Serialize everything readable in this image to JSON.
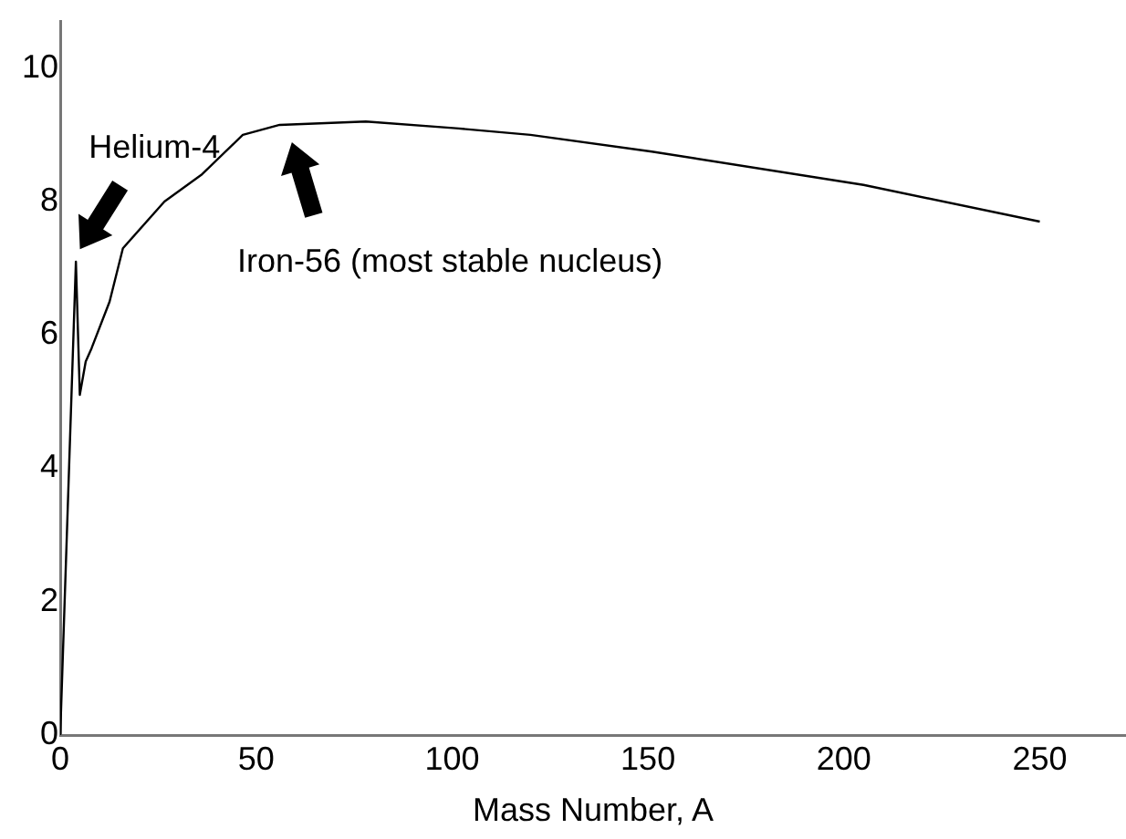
{
  "chart_data": {
    "type": "line",
    "xlabel": "Mass Number, A",
    "x": [
      0,
      4,
      5,
      6.5,
      8,
      12.6,
      16,
      26.6,
      36,
      46.6,
      56,
      78,
      101,
      120,
      151,
      205,
      250
    ],
    "values": [
      0,
      7.1,
      5.1,
      5.6,
      5.8,
      6.5,
      7.3,
      8.0,
      8.4,
      9.0,
      9.15,
      9.2,
      9.1,
      9.0,
      8.75,
      8.25,
      7.7
    ],
    "color": "#000000",
    "marker": "none",
    "grid": false,
    "legend": false,
    "xlim": [
      0,
      272
    ],
    "xticks": [
      0,
      50,
      100,
      150,
      200,
      250
    ],
    "ylim": [
      0,
      10.7
    ],
    "yticks": [
      0,
      2,
      4,
      6,
      8,
      10
    ],
    "annotations": [
      {
        "text": "Helium-4",
        "x": 4,
        "y": 7.1
      },
      "Iron-56 (most stable nucleus)"
    ]
  }
}
